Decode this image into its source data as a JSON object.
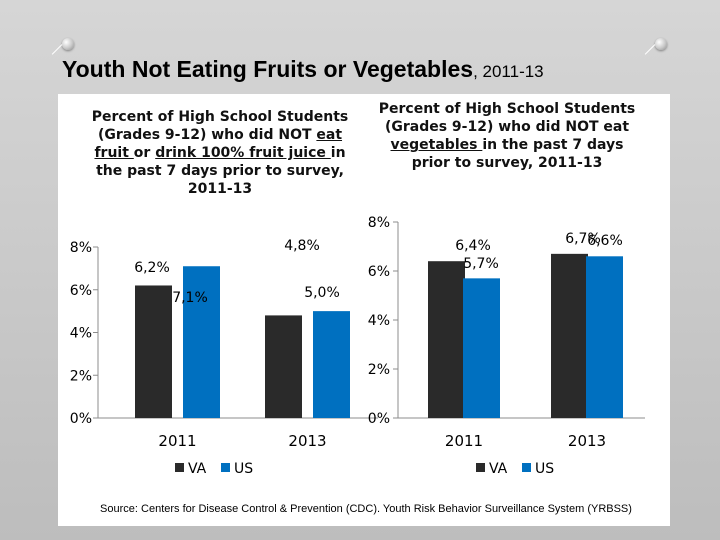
{
  "slide_title": {
    "main": "Youth Not Eating Fruits or Vegetables",
    "years": ", 2011-13"
  },
  "source": "Source: Centers for Disease Control & Prevention (CDC). Youth Risk Behavior Surveillance System (YRBSS)",
  "chart_data": [
    {
      "type": "bar",
      "title_parts": [
        "Percent of High School Students (Grades 9-12) who did NOT ",
        "eat fruit ",
        "or ",
        "drink 100% fruit juice ",
        "in the past 7 days prior to survey, 2011-13"
      ],
      "categories": [
        "2011",
        "2013"
      ],
      "series": [
        {
          "name": "VA",
          "values": [
            6.2,
            4.8
          ],
          "labels": [
            "6,2%",
            "4,8%"
          ],
          "color": "#2a2a2a"
        },
        {
          "name": "US",
          "values": [
            7.1,
            5.0
          ],
          "labels": [
            "7,1%",
            "5,0%"
          ],
          "color": "#0070c0"
        }
      ],
      "ylim": [
        0,
        8
      ],
      "yticks": [
        {
          "v": 0,
          "label": "0%"
        },
        {
          "v": 2,
          "label": "2%"
        },
        {
          "v": 4,
          "label": "4%"
        },
        {
          "v": 6,
          "label": "6%"
        },
        {
          "v": 8,
          "label": "8%"
        }
      ],
      "legend": [
        "VA",
        "US"
      ],
      "legend_position": "bottom"
    },
    {
      "type": "bar",
      "title_parts": [
        "Percent of High School Students (Grades 9-12) who did NOT eat ",
        "vegetables ",
        "in the past 7 days prior to survey, 2011-13"
      ],
      "categories": [
        "2011",
        "2013"
      ],
      "series": [
        {
          "name": "VA",
          "values": [
            6.4,
            6.7
          ],
          "labels": [
            "6,4%",
            "6,7%"
          ],
          "color": "#2a2a2a"
        },
        {
          "name": "US",
          "values": [
            5.7,
            6.6
          ],
          "labels": [
            "5,7%",
            "6,6%"
          ],
          "color": "#0070c0"
        }
      ],
      "ylim": [
        0,
        8
      ],
      "yticks": [
        {
          "v": 0,
          "label": "0%"
        },
        {
          "v": 2,
          "label": "2%"
        },
        {
          "v": 4,
          "label": "4%"
        },
        {
          "v": 6,
          "label": "6%"
        },
        {
          "v": 8,
          "label": "8%"
        }
      ],
      "legend": [
        "VA",
        "US"
      ],
      "legend_position": "bottom"
    }
  ]
}
